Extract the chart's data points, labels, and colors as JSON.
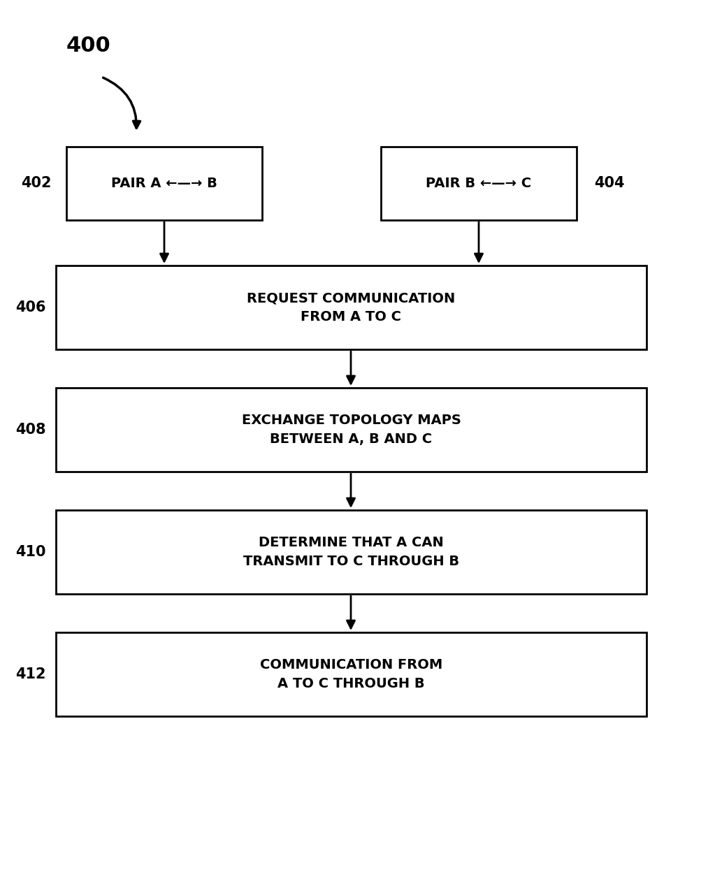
{
  "bg_color": "#ffffff",
  "box_color": "#ffffff",
  "box_edge_color": "#000000",
  "text_color": "#000000",
  "arrow_color": "#000000",
  "label_400": "400",
  "label_402": "402",
  "label_404": "404",
  "label_406": "406",
  "label_408": "408",
  "label_410": "410",
  "label_412": "412",
  "box_402_text": "PAIR A ←—→ B",
  "box_404_text": "PAIR B ←—→ C",
  "box_406_text": "REQUEST COMMUNICATION\nFROM A TO C",
  "box_408_text": "EXCHANGE TOPOLOGY MAPS\nBETWEEN A, B AND C",
  "box_410_text": "DETERMINE THAT A CAN\nTRANSMIT TO C THROUGH B",
  "box_412_text": "COMMUNICATION FROM\nA TO C THROUGH B",
  "font_size_main": 14,
  "font_size_top": 14,
  "font_size_label": 15,
  "font_size_400": 22,
  "fig_width": 10.23,
  "fig_height": 12.78,
  "dpi": 100
}
